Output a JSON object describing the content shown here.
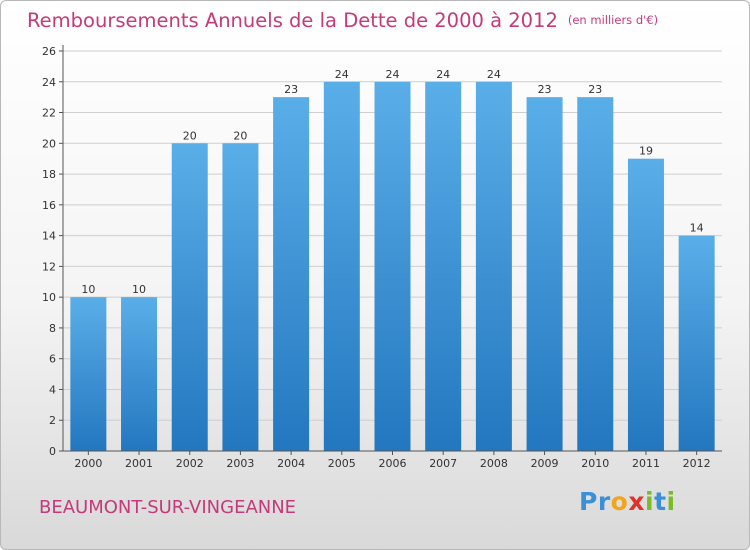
{
  "header": {
    "title": "Remboursements Annuels de la Dette de 2000 à 2012",
    "unit": "(en milliers d'€)"
  },
  "footer": {
    "city": "BEAUMONT-SUR-VINGEANNE",
    "logo_text": "Proxiti"
  },
  "colors": {
    "title": "#c43a7a",
    "bar_light": "#5aaee8",
    "bar_dark": "#2377bf"
  },
  "chart_data": {
    "type": "bar",
    "title": "Remboursements Annuels de la Dette de 2000 à 2012",
    "xlabel": "",
    "ylabel": "",
    "categories": [
      "2000",
      "2001",
      "2002",
      "2003",
      "2004",
      "2005",
      "2006",
      "2007",
      "2008",
      "2009",
      "2010",
      "2011",
      "2012"
    ],
    "values": [
      10,
      10,
      20,
      20,
      23,
      24,
      24,
      24,
      24,
      23,
      23,
      19,
      14
    ],
    "ylim": [
      0,
      26
    ],
    "yticks": [
      0,
      2,
      4,
      6,
      8,
      10,
      12,
      14,
      16,
      18,
      20,
      22,
      24,
      26
    ],
    "grid": true
  }
}
